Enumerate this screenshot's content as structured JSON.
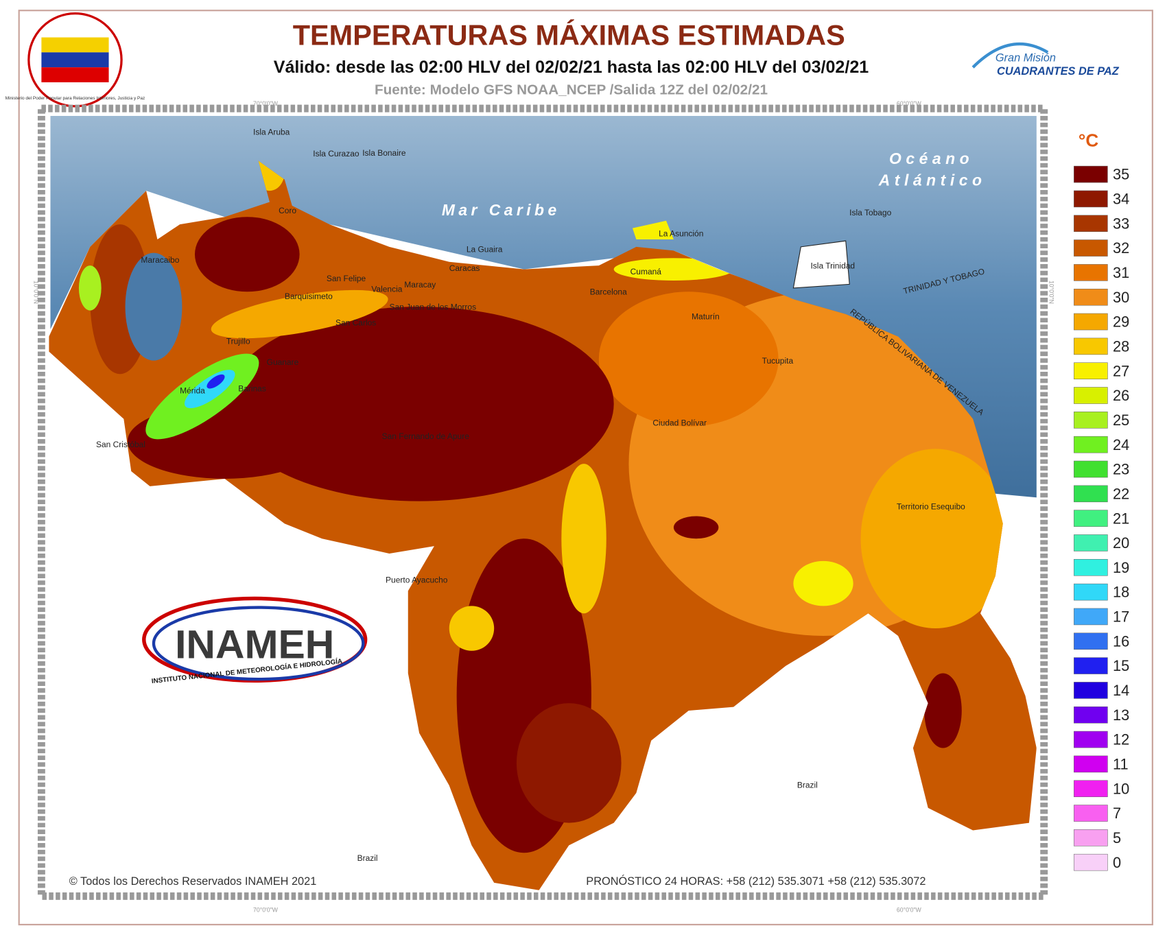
{
  "header": {
    "title": "TEMPERATURAS MÁXIMAS ESTIMADAS",
    "subtitle": "Válido: desde las 02:00 HLV del 02/02/21 hasta las 02:00 HLV del 03/02/21",
    "source": "Fuente: Modelo GFS NOAA_NCEP /Salida 12Z del 02/02/21"
  },
  "logos": {
    "ministry": "Ministerio del Poder Popular para Relaciones Interiores, Justicia y Paz",
    "mission_top": "Gran Misión",
    "mission_bottom": "CUADRANTES DE PAZ",
    "inameh": "INAMEH",
    "inameh_full": "INSTITUTO NACIONAL DE METEOROLOGÍA E HIDROLOGÍA"
  },
  "graticule": {
    "lon_west": "70°0'0\"W",
    "lon_east": "60°0'0\"W",
    "lat": "10°0'0\"N"
  },
  "seas": {
    "caribbean": "Mar Caribe",
    "atlantic_1": "Océano",
    "atlantic_2": "Atlántico"
  },
  "places": [
    "Coro",
    "Maracaibo",
    "Barquisimeto",
    "San Felipe",
    "Valencia",
    "Maracay",
    "La Guaira",
    "Caracas",
    "Cumaná",
    "Barcelona",
    "Maturín",
    "Tucupita",
    "Trujillo",
    "Mérida",
    "Barinas",
    "Guanare",
    "San Carlos",
    "San Cristóbal",
    "San Juan de los Morros",
    "San Fernando de Apure",
    "Ciudad Bolívar",
    "Puerto Ayacucho",
    "Territorio Esequibo",
    "Brazil",
    "Brazil",
    "Isla Trinidad",
    "Isla Tobago",
    "Isla Aruba",
    "Isla Curazao",
    "Isla Bonaire",
    "La Asunción",
    "TRINIDAD Y TOBAGO",
    "REPÚBLICA BOLIVARIANA DE VENEZUELA"
  ],
  "legend": {
    "unit": "°C",
    "items": [
      {
        "value": 35,
        "color": "#7a0000"
      },
      {
        "value": 34,
        "color": "#8e1800"
      },
      {
        "value": 33,
        "color": "#a83600"
      },
      {
        "value": 32,
        "color": "#c85800"
      },
      {
        "value": 31,
        "color": "#e87400"
      },
      {
        "value": 30,
        "color": "#f08c18"
      },
      {
        "value": 29,
        "color": "#f5a800"
      },
      {
        "value": 28,
        "color": "#f8c800"
      },
      {
        "value": 27,
        "color": "#f8f000"
      },
      {
        "value": 26,
        "color": "#d8f000"
      },
      {
        "value": 25,
        "color": "#a8f020"
      },
      {
        "value": 24,
        "color": "#70f020"
      },
      {
        "value": 23,
        "color": "#40e030"
      },
      {
        "value": 22,
        "color": "#30e050"
      },
      {
        "value": 21,
        "color": "#40f080"
      },
      {
        "value": 20,
        "color": "#40f0b0"
      },
      {
        "value": 19,
        "color": "#30f0e0"
      },
      {
        "value": 18,
        "color": "#30d8f8"
      },
      {
        "value": 17,
        "color": "#40a8f8"
      },
      {
        "value": 16,
        "color": "#3070f0"
      },
      {
        "value": 15,
        "color": "#2020f0"
      },
      {
        "value": 14,
        "color": "#2000e0"
      },
      {
        "value": 13,
        "color": "#7000f0"
      },
      {
        "value": 12,
        "color": "#a000f0"
      },
      {
        "value": 11,
        "color": "#d000f0"
      },
      {
        "value": 10,
        "color": "#f020f0"
      },
      {
        "value": 7,
        "color": "#f860f0"
      },
      {
        "value": 5,
        "color": "#f8a0f0"
      },
      {
        "value": 0,
        "color": "#f8d0f8"
      }
    ]
  },
  "footer": {
    "copyright": "© Todos los Derechos Reservados INAMEH 2021",
    "contact": "PRONÓSTICO 24 HORAS: +58 (212) 535.3071 +58 (212) 535.3072"
  }
}
